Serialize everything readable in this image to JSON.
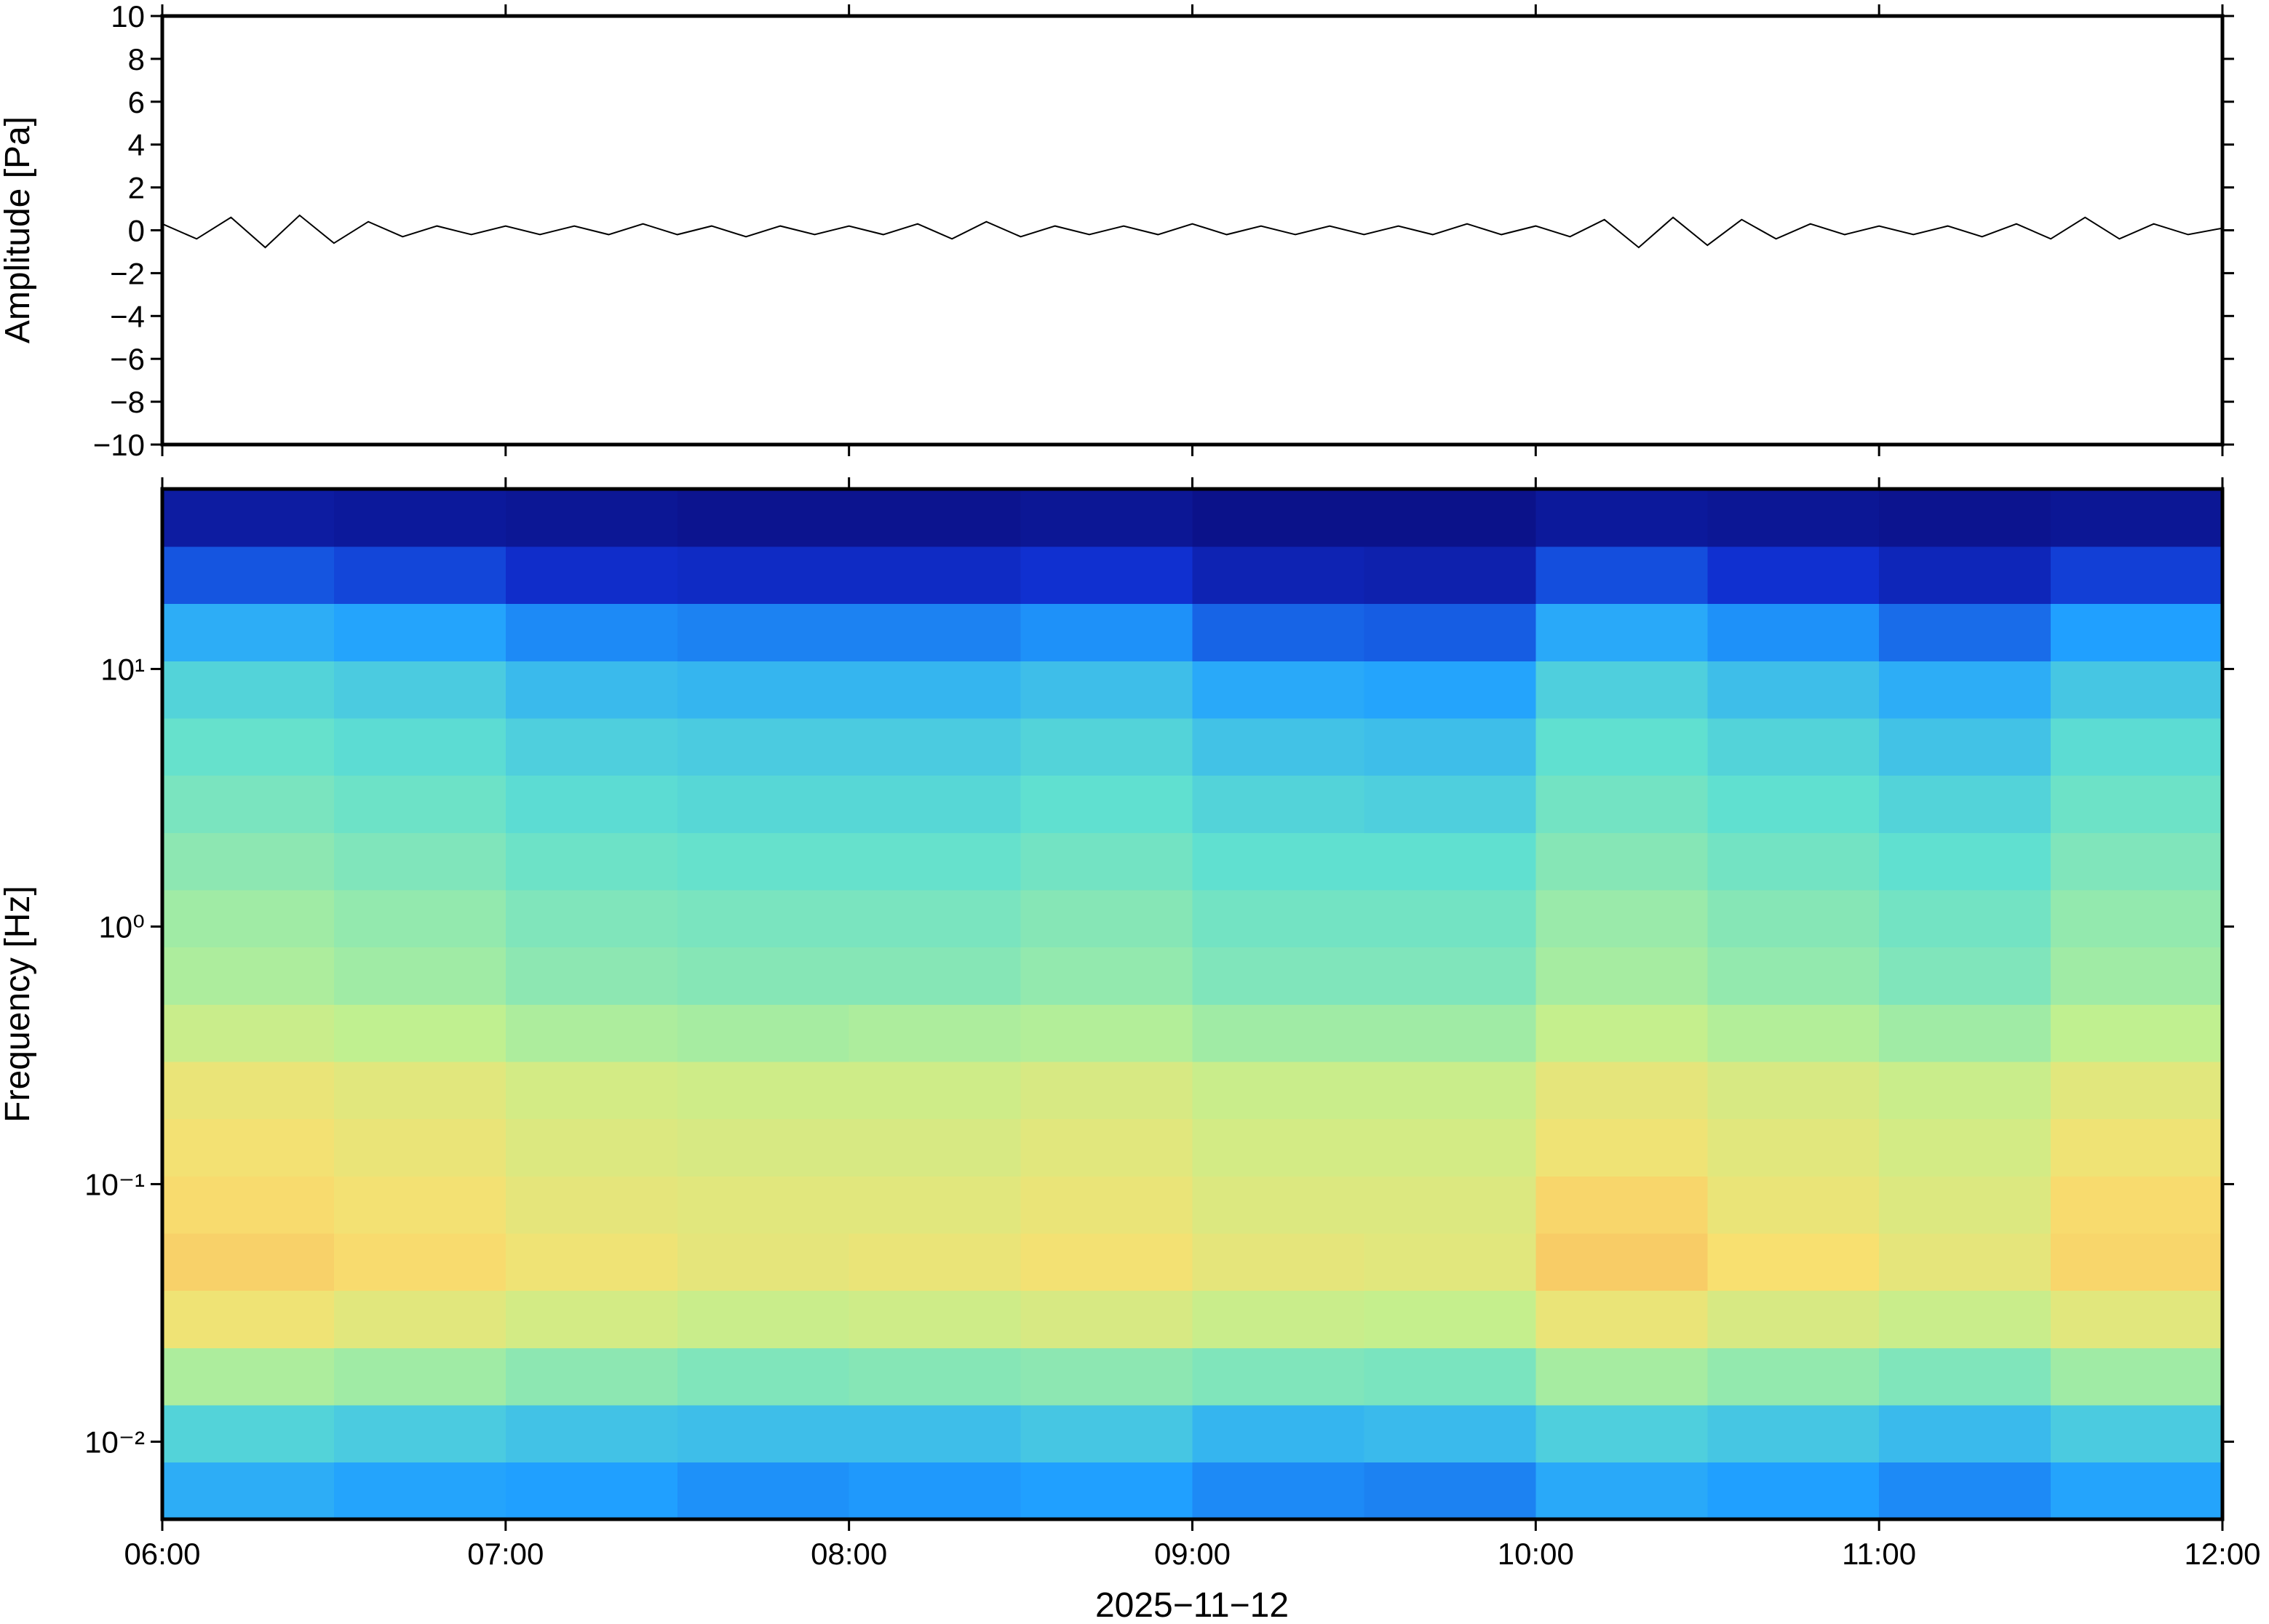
{
  "chart_data": [
    {
      "type": "line",
      "ylabel": "Amplitude [Pa]",
      "color": "#000000",
      "x": [
        6.0,
        6.1,
        6.2,
        6.3,
        6.4,
        6.5,
        6.6,
        6.7,
        6.8,
        6.9,
        7.0,
        7.1,
        7.2,
        7.3,
        7.4,
        7.5,
        7.6,
        7.7,
        7.8,
        7.9,
        8.0,
        8.1,
        8.2,
        8.3,
        8.4,
        8.5,
        8.6,
        8.7,
        8.8,
        8.9,
        9.0,
        9.1,
        9.2,
        9.3,
        9.4,
        9.5,
        9.6,
        9.7,
        9.8,
        9.9,
        10.0,
        10.1,
        10.2,
        10.3,
        10.4,
        10.5,
        10.6,
        10.7,
        10.8,
        10.9,
        11.0,
        11.1,
        11.2,
        11.3,
        11.4,
        11.5,
        11.6,
        11.7,
        11.8,
        11.9,
        12.0
      ],
      "values": [
        0.3,
        -0.4,
        0.6,
        -0.8,
        0.7,
        -0.6,
        0.4,
        -0.3,
        0.2,
        -0.2,
        0.2,
        -0.2,
        0.2,
        -0.2,
        0.3,
        -0.2,
        0.2,
        -0.3,
        0.2,
        -0.2,
        0.2,
        -0.2,
        0.3,
        -0.4,
        0.4,
        -0.3,
        0.2,
        -0.2,
        0.2,
        -0.2,
        0.3,
        -0.2,
        0.2,
        -0.2,
        0.2,
        -0.2,
        0.2,
        -0.2,
        0.3,
        -0.2,
        0.2,
        -0.3,
        0.5,
        -0.8,
        0.6,
        -0.7,
        0.5,
        -0.4,
        0.3,
        -0.2,
        0.2,
        -0.2,
        0.2,
        -0.3,
        0.3,
        -0.4,
        0.6,
        -0.4,
        0.3,
        -0.2,
        0.1
      ],
      "xlim": [
        6,
        12
      ],
      "xticks": [
        6,
        7,
        8,
        9,
        10,
        11,
        12
      ],
      "ylim": [
        -10,
        10
      ],
      "yticks": [
        {
          "value": -10,
          "label": "−10"
        },
        {
          "value": -8,
          "label": "−8"
        },
        {
          "value": -6,
          "label": "−6"
        },
        {
          "value": -4,
          "label": "−4"
        },
        {
          "value": -2,
          "label": "−2"
        },
        0,
        2,
        4,
        6,
        8,
        10
      ]
    },
    {
      "type": "heatmap",
      "ylabel": "Frequency [Hz]",
      "xlabel": "2025−11−12",
      "yscale": "log",
      "xlim": [
        6,
        12
      ],
      "xticks": [
        {
          "value": 6,
          "label": "06:00"
        },
        {
          "value": 7,
          "label": "07:00"
        },
        {
          "value": 8,
          "label": "08:00"
        },
        {
          "value": 9,
          "label": "09:00"
        },
        {
          "value": 10,
          "label": "10:00"
        },
        {
          "value": 11,
          "label": "11:00"
        },
        {
          "value": 12,
          "label": "12:00"
        }
      ],
      "ylim": [
        0.005,
        50
      ],
      "yticks": [
        {
          "value": 0.01,
          "label": "10⁻²"
        },
        {
          "value": 0.1,
          "label": "10⁻¹"
        },
        {
          "value": 1,
          "label": "10⁰"
        },
        {
          "value": 10,
          "label": "10¹"
        }
      ],
      "x_bins": [
        6,
        6.5,
        7,
        7.5,
        8,
        8.5,
        9,
        9.5,
        10,
        10.5,
        11,
        11.5,
        12
      ],
      "y_bins": [
        0.005,
        0.00834,
        0.01391,
        0.02321,
        0.03871,
        0.0646,
        0.1077,
        0.1797,
        0.2997,
        0.5,
        0.834,
        1.391,
        2.321,
        3.871,
        6.46,
        10.77,
        17.97,
        29.97,
        50
      ],
      "zlim": [
        0,
        1
      ],
      "colorscale": [
        [
          0,
          "#0a0a78"
        ],
        [
          0.15,
          "#1030d0"
        ],
        [
          0.3,
          "#20a0ff"
        ],
        [
          0.45,
          "#60e0d0"
        ],
        [
          0.6,
          "#c0f090"
        ],
        [
          0.72,
          "#f8e070"
        ],
        [
          0.85,
          "#f8a050"
        ]
      ],
      "values": [
        [
          0.33,
          0.31,
          0.3,
          0.28,
          0.29,
          0.3,
          0.27,
          0.26,
          0.32,
          0.3,
          0.27,
          0.31
        ],
        [
          0.42,
          0.4,
          0.38,
          0.37,
          0.37,
          0.39,
          0.35,
          0.36,
          0.41,
          0.39,
          0.36,
          0.4
        ],
        [
          0.57,
          0.55,
          0.52,
          0.5,
          0.51,
          0.52,
          0.5,
          0.49,
          0.56,
          0.53,
          0.5,
          0.55
        ],
        [
          0.7,
          0.67,
          0.64,
          0.62,
          0.63,
          0.65,
          0.62,
          0.61,
          0.69,
          0.65,
          0.62,
          0.67
        ],
        [
          0.75,
          0.73,
          0.7,
          0.68,
          0.69,
          0.71,
          0.68,
          0.67,
          0.76,
          0.72,
          0.68,
          0.74
        ],
        [
          0.73,
          0.71,
          0.68,
          0.67,
          0.67,
          0.69,
          0.66,
          0.66,
          0.74,
          0.69,
          0.66,
          0.73
        ],
        [
          0.71,
          0.69,
          0.66,
          0.65,
          0.65,
          0.67,
          0.64,
          0.64,
          0.7,
          0.67,
          0.64,
          0.7
        ],
        [
          0.69,
          0.67,
          0.64,
          0.63,
          0.63,
          0.65,
          0.62,
          0.62,
          0.68,
          0.65,
          0.62,
          0.67
        ],
        [
          0.62,
          0.6,
          0.57,
          0.56,
          0.57,
          0.58,
          0.55,
          0.55,
          0.61,
          0.58,
          0.55,
          0.6
        ],
        [
          0.57,
          0.55,
          0.52,
          0.51,
          0.51,
          0.53,
          0.5,
          0.5,
          0.56,
          0.53,
          0.5,
          0.55
        ],
        [
          0.55,
          0.53,
          0.5,
          0.49,
          0.49,
          0.51,
          0.48,
          0.48,
          0.54,
          0.51,
          0.48,
          0.53
        ],
        [
          0.52,
          0.5,
          0.47,
          0.46,
          0.46,
          0.48,
          0.45,
          0.45,
          0.51,
          0.48,
          0.45,
          0.5
        ],
        [
          0.49,
          0.47,
          0.44,
          0.43,
          0.43,
          0.45,
          0.42,
          0.41,
          0.48,
          0.45,
          0.42,
          0.47
        ],
        [
          0.46,
          0.44,
          0.41,
          0.4,
          0.4,
          0.42,
          0.38,
          0.37,
          0.45,
          0.42,
          0.38,
          0.44
        ],
        [
          0.42,
          0.4,
          0.36,
          0.35,
          0.35,
          0.37,
          0.32,
          0.31,
          0.41,
          0.37,
          0.33,
          0.39
        ],
        [
          0.33,
          0.31,
          0.27,
          0.26,
          0.26,
          0.28,
          0.22,
          0.21,
          0.32,
          0.28,
          0.23,
          0.3
        ],
        [
          0.2,
          0.18,
          0.14,
          0.13,
          0.13,
          0.15,
          0.1,
          0.09,
          0.19,
          0.15,
          0.11,
          0.17
        ],
        [
          0.07,
          0.06,
          0.05,
          0.04,
          0.04,
          0.05,
          0.03,
          0.03,
          0.06,
          0.05,
          0.04,
          0.05
        ]
      ]
    }
  ]
}
